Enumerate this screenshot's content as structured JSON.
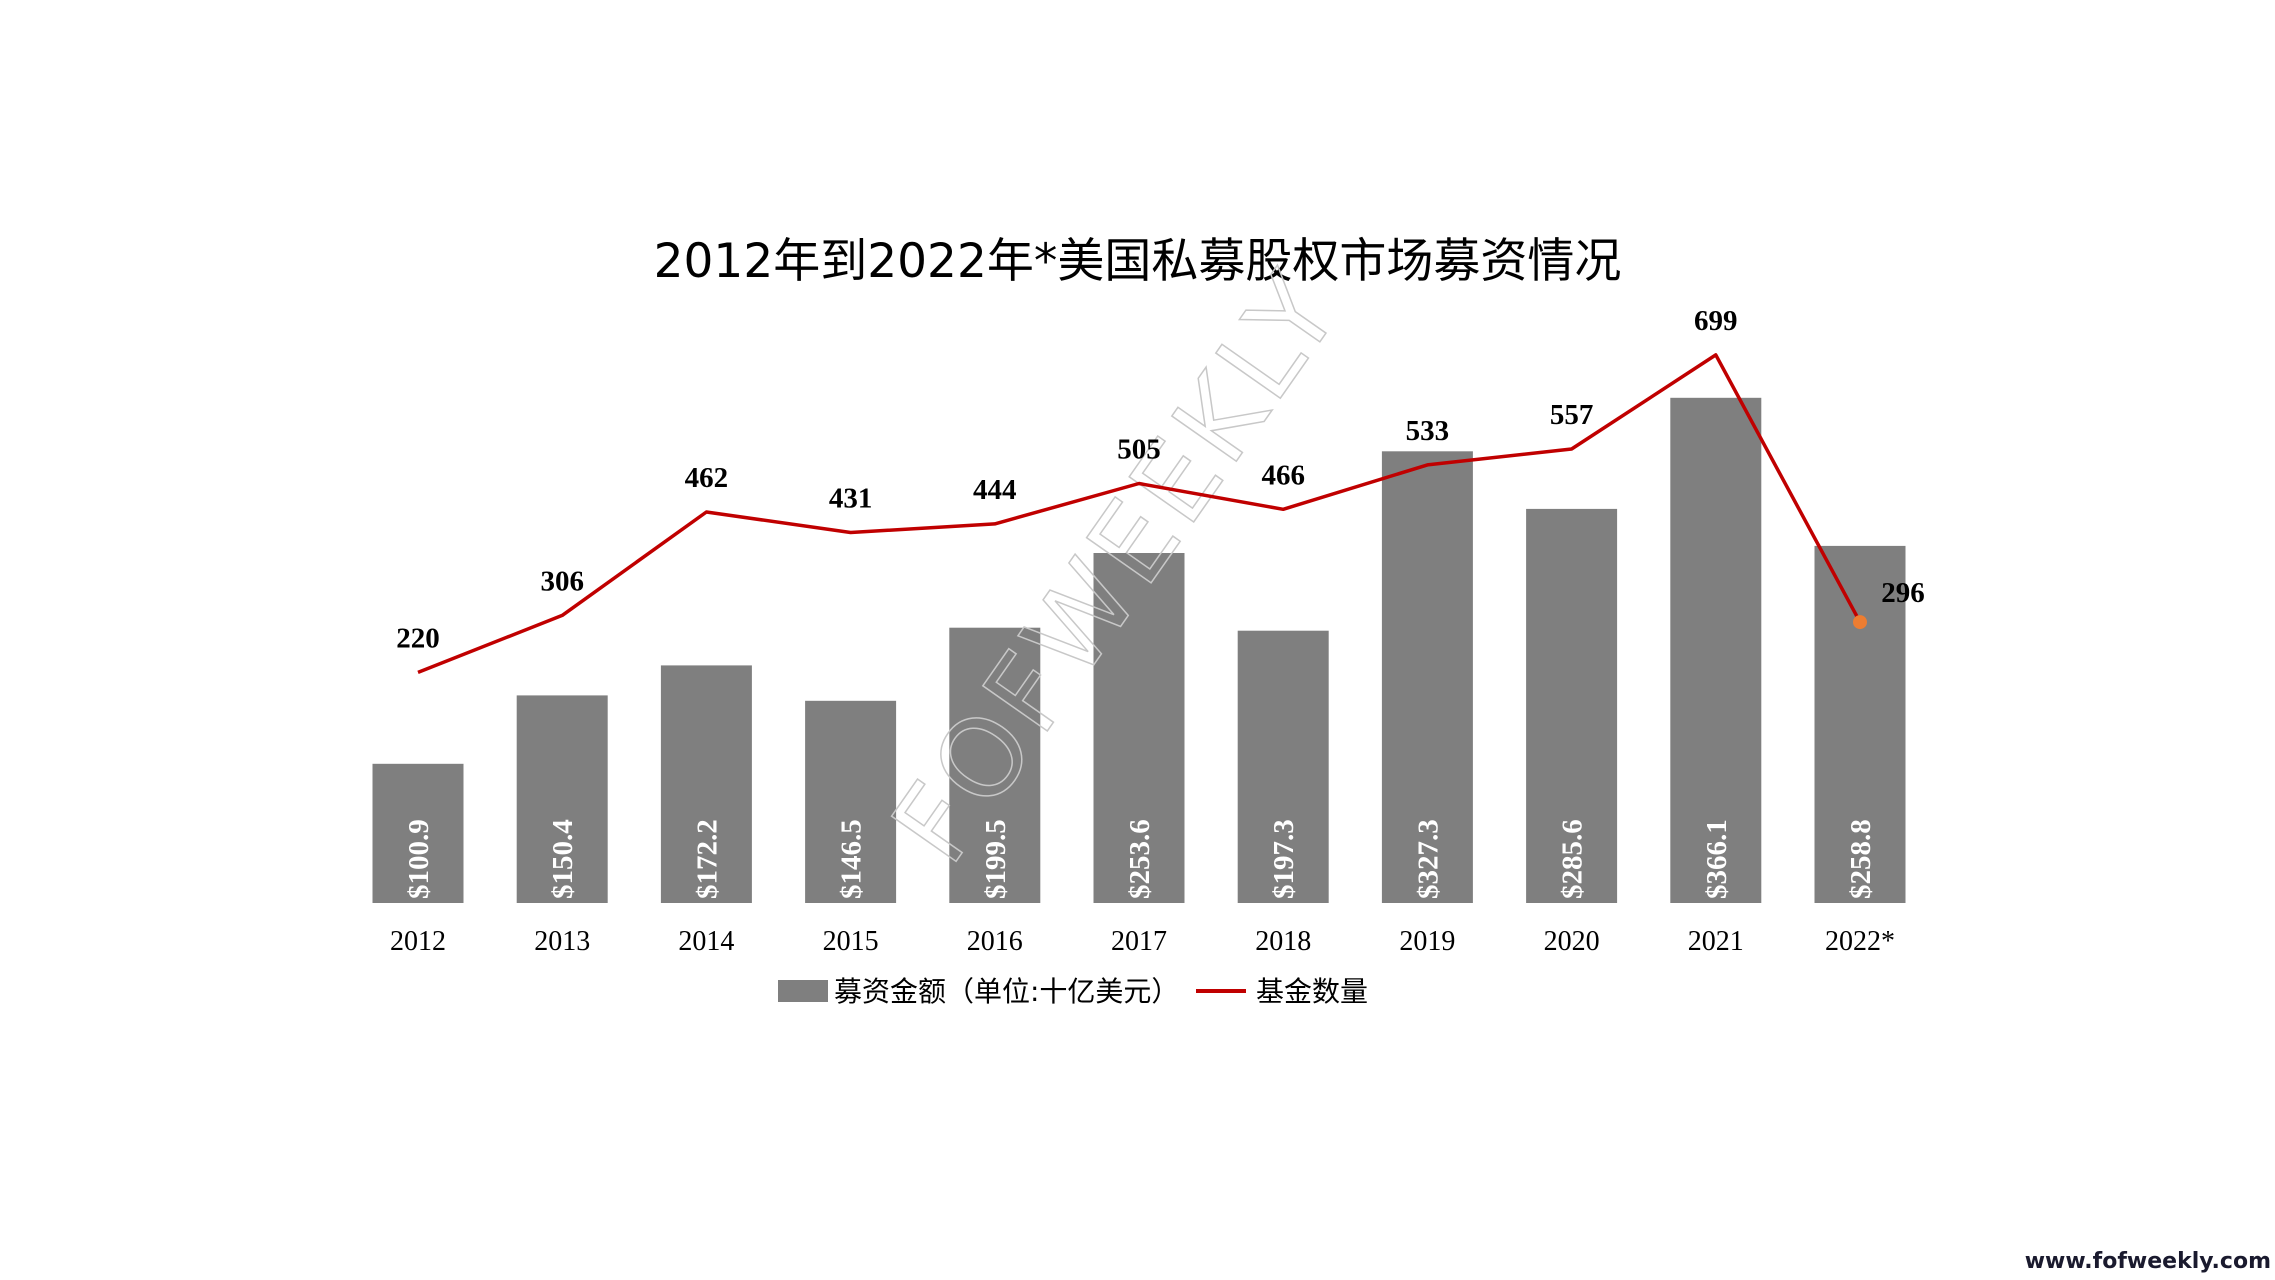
{
  "chart_data": {
    "type": "bar",
    "title": "2012年到2022年*美国私募股权市场募资情况",
    "categories": [
      "2012",
      "2013",
      "2014",
      "2015",
      "2016",
      "2017",
      "2018",
      "2019",
      "2020",
      "2021",
      "2022*"
    ],
    "series": [
      {
        "name": "募资金额（单位:十亿美元）",
        "type": "bar",
        "color": "#7f7f7f",
        "values": [
          100.9,
          150.4,
          172.2,
          146.5,
          199.5,
          253.6,
          197.3,
          327.3,
          285.6,
          366.1,
          258.8
        ],
        "labels": [
          "$100.9",
          "$150.4",
          "$172.2",
          "$146.5",
          "$199.5",
          "$253.6",
          "$197.3",
          "$327.3",
          "$285.6",
          "$366.1",
          "$258.8"
        ]
      },
      {
        "name": "基金数量",
        "type": "line",
        "color": "#c00000",
        "last_point_color": "#ed7d31",
        "values": [
          220,
          306,
          462,
          431,
          444,
          505,
          466,
          533,
          557,
          699,
          296
        ],
        "labels": [
          "220",
          "306",
          "462",
          "431",
          "444",
          "505",
          "466",
          "533",
          "557",
          "699",
          "296"
        ]
      }
    ],
    "legend_position": "bottom",
    "grid": false
  },
  "watermark": "FOFWEEKLY",
  "site_url": "www.fofweekly.com"
}
